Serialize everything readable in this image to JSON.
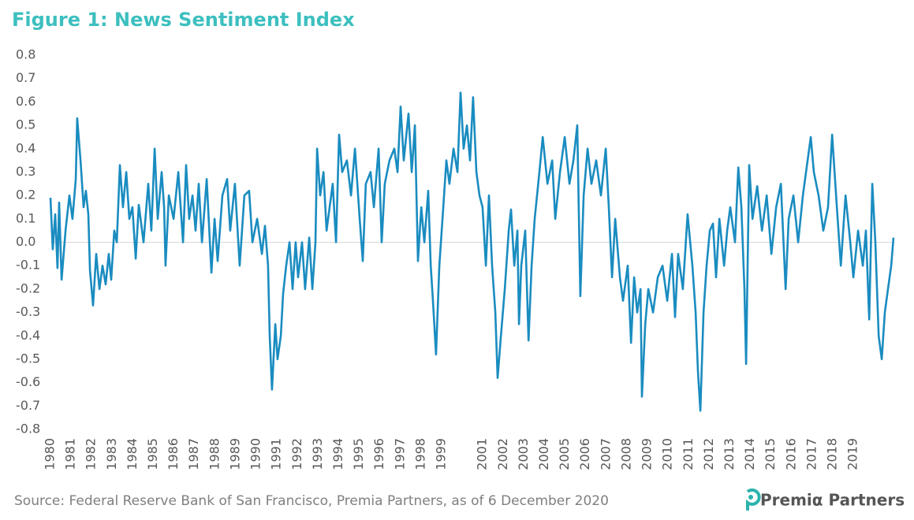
{
  "chart_data": {
    "type": "line",
    "title": "Figure 1: News Sentiment Index",
    "source": "Source: Federal Reserve Bank of San Francisco, Premia Partners, as of 6 December 2020",
    "logo": "Premiα Partners",
    "color": "#1a8cc0",
    "xlim": [
      1980,
      2020.95
    ],
    "ylim": [
      -0.8,
      0.8
    ],
    "yticks": [
      -0.8,
      -0.7,
      -0.6,
      -0.5,
      -0.4,
      -0.3,
      -0.2,
      -0.1,
      {
        "value": 0,
        "label": "0.0"
      },
      0.1,
      0.2,
      0.3,
      0.4,
      0.5,
      0.6,
      0.7,
      0.8
    ],
    "xticks": [
      1980,
      1981,
      1982,
      1983,
      1984,
      1985,
      1986,
      1987,
      1988,
      1989,
      1990,
      1991,
      1992,
      1993,
      1994,
      1995,
      1996,
      1997,
      1998,
      1999,
      2001,
      2002,
      2003,
      2004,
      2005,
      2006,
      2007,
      2008,
      2009,
      2010,
      2011,
      2012,
      2013,
      2014,
      2015,
      2016,
      2017,
      2018,
      2019
    ],
    "zero_line": true,
    "x": [
      1980.0,
      1980.11,
      1980.23,
      1980.34,
      1980.42,
      1980.54,
      1980.73,
      1980.92,
      1981.07,
      1981.23,
      1981.3,
      1981.46,
      1981.61,
      1981.72,
      1981.84,
      1981.92,
      1982.07,
      1982.22,
      1982.38,
      1982.53,
      1982.68,
      1982.83,
      1982.95,
      1983.1,
      1983.22,
      1983.37,
      1983.52,
      1983.68,
      1983.83,
      1983.98,
      1984.14,
      1984.29,
      1984.52,
      1984.75,
      1984.9,
      1985.06,
      1985.21,
      1985.4,
      1985.52,
      1985.59,
      1985.75,
      1985.98,
      1986.21,
      1986.44,
      1986.59,
      1986.74,
      1986.9,
      1987.05,
      1987.2,
      1987.36,
      1987.59,
      1987.82,
      1987.97,
      1988.12,
      1988.35,
      1988.58,
      1988.73,
      1988.96,
      1989.19,
      1989.42,
      1989.65,
      1989.81,
      1990.04,
      1990.27,
      1990.42,
      1990.57,
      1990.65,
      1990.76,
      1990.92,
      1991.03,
      1991.19,
      1991.3,
      1991.45,
      1991.61,
      1991.76,
      1991.91,
      1992.03,
      1992.22,
      1992.37,
      1992.57,
      1992.72,
      1992.87,
      1992.95,
      1993.1,
      1993.26,
      1993.41,
      1993.56,
      1993.71,
      1993.87,
      1994.02,
      1994.17,
      1994.4,
      1994.6,
      1994.79,
      1995.02,
      1995.17,
      1995.32,
      1995.55,
      1995.71,
      1995.94,
      1996.09,
      1996.24,
      1996.47,
      1996.7,
      1996.86,
      1997.01,
      1997.16,
      1997.39,
      1997.55,
      1997.7,
      1997.85,
      1998.01,
      1998.16,
      1998.35,
      1998.47,
      1998.58,
      1998.73,
      1998.89,
      1999.08,
      1999.23,
      1999.38,
      1999.58,
      1999.77,
      1999.92,
      2000.07,
      2000.23,
      2000.38,
      2000.53,
      2000.69,
      2000.84,
      2000.99,
      2001.15,
      2001.3,
      2001.45,
      2001.61,
      2001.72,
      2001.88,
      2002.07,
      2002.26,
      2002.37,
      2002.53,
      2002.68,
      2002.76,
      2002.87,
      2003.06,
      2003.22,
      2003.37,
      2003.52,
      2003.75,
      2003.91,
      2004.14,
      2004.37,
      2004.52,
      2004.75,
      2004.98,
      2005.21,
      2005.4,
      2005.59,
      2005.74,
      2005.9,
      2006.09,
      2006.28,
      2006.51,
      2006.74,
      2006.97,
      2007.12,
      2007.28,
      2007.43,
      2007.66,
      2007.81,
      2008.04,
      2008.2,
      2008.35,
      2008.5,
      2008.66,
      2008.73,
      2008.89,
      2009.04,
      2009.27,
      2009.5,
      2009.73,
      2009.96,
      2010.19,
      2010.34,
      2010.49,
      2010.72,
      2010.95,
      2011.18,
      2011.34,
      2011.45,
      2011.57,
      2011.72,
      2011.87,
      2012.03,
      2012.18,
      2012.33,
      2012.49,
      2012.72,
      2012.87,
      2013.02,
      2013.25,
      2013.41,
      2013.56,
      2013.71,
      2013.79,
      2013.94,
      2014.1,
      2014.33,
      2014.56,
      2014.79,
      2015.02,
      2015.25,
      2015.48,
      2015.71,
      2015.86,
      2016.09,
      2016.32,
      2016.55,
      2016.78,
      2016.93,
      2017.08,
      2017.31,
      2017.54,
      2017.77,
      2017.97,
      2018.16,
      2018.39,
      2018.62,
      2018.85,
      2019.0,
      2019.23,
      2019.46,
      2019.61,
      2019.77,
      2019.92,
      2020.07,
      2020.23,
      2020.38,
      2020.53,
      2020.68,
      2020.84,
      2020.95
    ],
    "values": [
      0.19,
      -0.03,
      0.12,
      -0.11,
      0.17,
      -0.16,
      0.05,
      0.2,
      0.1,
      0.27,
      0.53,
      0.35,
      0.15,
      0.22,
      0.12,
      -0.12,
      -0.27,
      -0.05,
      -0.2,
      -0.1,
      -0.18,
      -0.05,
      -0.16,
      0.05,
      0.0,
      0.33,
      0.15,
      0.3,
      0.1,
      0.15,
      -0.07,
      0.16,
      0.0,
      0.25,
      0.05,
      0.4,
      0.1,
      0.3,
      0.15,
      -0.1,
      0.2,
      0.1,
      0.3,
      0.0,
      0.33,
      0.1,
      0.2,
      0.05,
      0.25,
      0.0,
      0.27,
      -0.13,
      0.1,
      -0.08,
      0.2,
      0.27,
      0.05,
      0.25,
      -0.1,
      0.2,
      0.22,
      0.0,
      0.1,
      -0.05,
      0.07,
      -0.1,
      -0.4,
      -0.63,
      -0.35,
      -0.5,
      -0.4,
      -0.22,
      -0.1,
      0.0,
      -0.2,
      0.0,
      -0.15,
      0.0,
      -0.2,
      0.02,
      -0.2,
      0.0,
      0.4,
      0.2,
      0.3,
      0.05,
      0.15,
      0.25,
      0.0,
      0.46,
      0.3,
      0.35,
      0.2,
      0.4,
      0.1,
      -0.08,
      0.25,
      0.3,
      0.15,
      0.4,
      0.0,
      0.25,
      0.35,
      0.4,
      0.3,
      0.58,
      0.35,
      0.55,
      0.3,
      0.5,
      -0.08,
      0.15,
      0.0,
      0.22,
      -0.1,
      -0.25,
      -0.48,
      -0.1,
      0.15,
      0.35,
      0.25,
      0.4,
      0.3,
      0.64,
      0.4,
      0.5,
      0.35,
      0.62,
      0.3,
      0.2,
      0.15,
      -0.1,
      0.2,
      -0.1,
      -0.3,
      -0.58,
      -0.4,
      -0.2,
      0.05,
      0.14,
      -0.1,
      0.05,
      -0.35,
      -0.1,
      0.05,
      -0.42,
      -0.1,
      0.1,
      0.3,
      0.45,
      0.25,
      0.35,
      0.1,
      0.3,
      0.45,
      0.25,
      0.35,
      0.5,
      -0.23,
      0.2,
      0.4,
      0.25,
      0.35,
      0.2,
      0.4,
      0.15,
      -0.15,
      0.1,
      -0.15,
      -0.25,
      -0.1,
      -0.43,
      -0.15,
      -0.3,
      -0.2,
      -0.66,
      -0.35,
      -0.2,
      -0.3,
      -0.15,
      -0.1,
      -0.25,
      -0.05,
      -0.32,
      -0.05,
      -0.2,
      0.12,
      -0.1,
      -0.3,
      -0.55,
      -0.72,
      -0.3,
      -0.1,
      0.05,
      0.08,
      -0.15,
      0.1,
      -0.1,
      0.05,
      0.15,
      0.0,
      0.32,
      0.15,
      -0.2,
      -0.52,
      0.33,
      0.1,
      0.24,
      0.05,
      0.2,
      -0.05,
      0.15,
      0.25,
      -0.2,
      0.1,
      0.2,
      0.0,
      0.2,
      0.35,
      0.45,
      0.3,
      0.2,
      0.05,
      0.15,
      0.46,
      0.2,
      -0.1,
      0.2,
      0.0,
      -0.15,
      0.05,
      -0.1,
      0.05,
      -0.33,
      0.25,
      0.0,
      -0.4,
      -0.5,
      -0.3,
      -0.2,
      -0.1,
      0.02
    ]
  }
}
